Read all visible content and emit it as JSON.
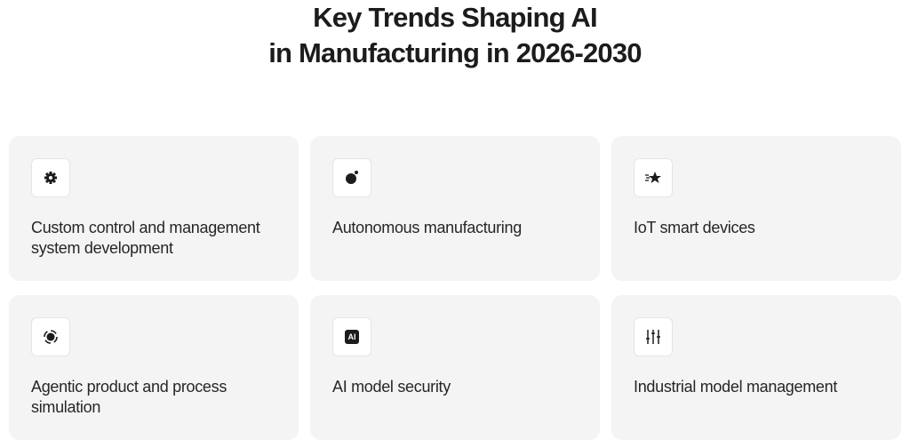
{
  "header": {
    "title_lines": [
      "Key Trends Shaping AI",
      "in Manufacturing in 2026-2030"
    ]
  },
  "cards": [
    {
      "label": "Custom control and management system development"
    },
    {
      "label": "Autonomous manufacturing"
    },
    {
      "label": "IoT smart devices"
    },
    {
      "label": "Agentic product and process simulation"
    },
    {
      "label": "AI model security",
      "icon_text": "AI"
    },
    {
      "label": "Industrial model management"
    }
  ]
}
